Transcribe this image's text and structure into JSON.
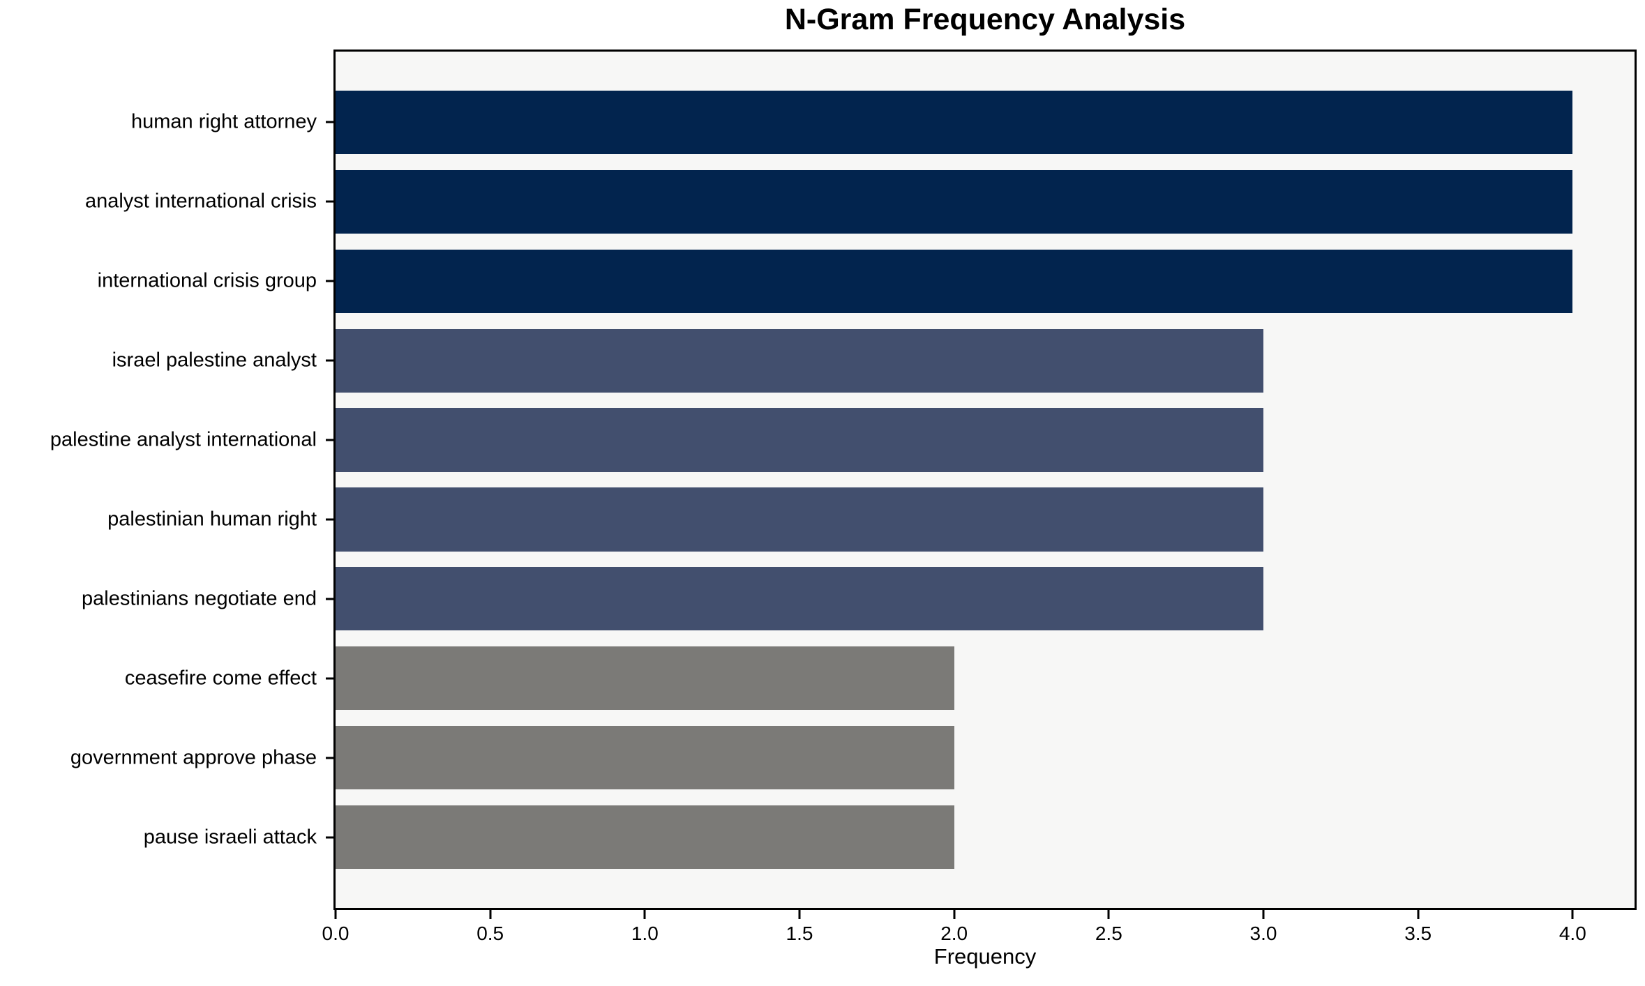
{
  "title": "N-Gram Frequency Analysis",
  "chart_data": {
    "type": "bar",
    "orientation": "horizontal",
    "title": "N-Gram Frequency Analysis",
    "xlabel": "Frequency",
    "ylabel": "",
    "categories": [
      "human right attorney",
      "analyst international crisis",
      "international crisis group",
      "israel palestine analyst",
      "palestine analyst international",
      "palestinian human right",
      "palestinians negotiate end",
      "ceasefire come effect",
      "government approve phase",
      "pause israeli attack"
    ],
    "values": [
      4,
      4,
      4,
      3,
      3,
      3,
      3,
      2,
      2,
      2
    ],
    "bar_colors": [
      "#02244E",
      "#02244E",
      "#02244E",
      "#424F6E",
      "#424F6E",
      "#424F6E",
      "#424F6E",
      "#7B7A77",
      "#7B7A77",
      "#7B7A77"
    ],
    "xlim": [
      0,
      4.2
    ],
    "xticks": [
      "0.0",
      "0.5",
      "1.0",
      "1.5",
      "2.0",
      "2.5",
      "3.0",
      "3.5",
      "4.0"
    ],
    "grid": false,
    "legend": false,
    "plot_background": "#F7F7F6",
    "frame_color": "#000000",
    "bar_height_frac": 0.8,
    "y_units_total": 10.78,
    "y_first_center_offset": 0.89
  }
}
